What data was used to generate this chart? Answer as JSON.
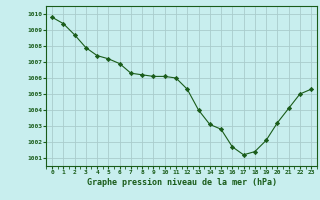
{
  "x": [
    0,
    1,
    2,
    3,
    4,
    5,
    6,
    7,
    8,
    9,
    10,
    11,
    12,
    13,
    14,
    15,
    16,
    17,
    18,
    19,
    20,
    21,
    22,
    23
  ],
  "y": [
    1009.8,
    1009.4,
    1008.7,
    1007.9,
    1007.4,
    1007.2,
    1006.9,
    1006.3,
    1006.2,
    1006.1,
    1006.1,
    1006.0,
    1005.3,
    1004.0,
    1003.1,
    1002.8,
    1001.7,
    1001.2,
    1001.4,
    1002.1,
    1003.2,
    1004.1,
    1005.0,
    1005.3
  ],
  "line_color": "#1a5c1a",
  "marker": "D",
  "marker_size": 2.2,
  "background_color": "#c8eeee",
  "grid_color": "#aacccc",
  "xlabel": "Graphe pression niveau de la mer (hPa)",
  "ylabel_ticks": [
    1001,
    1002,
    1003,
    1004,
    1005,
    1006,
    1007,
    1008,
    1009,
    1010
  ],
  "xlim": [
    -0.5,
    23.5
  ],
  "ylim": [
    1000.5,
    1010.5
  ],
  "xtick_labels": [
    "0",
    "1",
    "2",
    "3",
    "4",
    "5",
    "6",
    "7",
    "8",
    "9",
    "10",
    "11",
    "12",
    "13",
    "14",
    "15",
    "16",
    "17",
    "18",
    "19",
    "20",
    "21",
    "22",
    "23"
  ]
}
